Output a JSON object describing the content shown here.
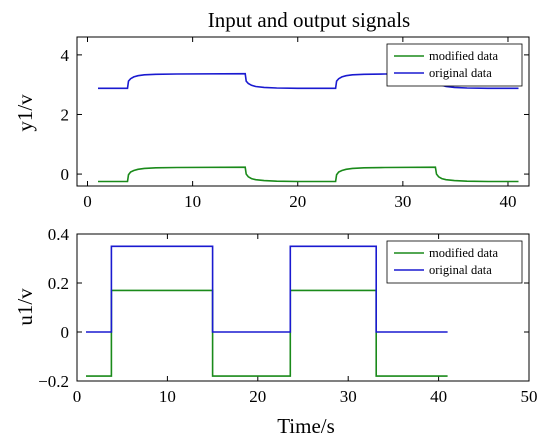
{
  "chart_data": [
    {
      "type": "line",
      "title": "Input and output signals",
      "ylabel": "y1/v",
      "xlim": [
        -1,
        42
      ],
      "ylim": [
        -0.4,
        4.6
      ],
      "xticks": [
        0,
        10,
        20,
        30,
        40
      ],
      "yticks": [
        0,
        2,
        4
      ],
      "legend": "top-right",
      "series": [
        {
          "name": "modified data",
          "color": "#1a8a1a",
          "x": [
            1.0,
            3.8,
            3.9,
            4.1,
            4.4,
            4.8,
            5.4,
            6.5,
            8.5,
            15.0,
            15.1,
            15.3,
            15.6,
            16.0,
            16.8,
            18.0,
            20.0,
            23.6,
            23.7,
            23.9,
            24.2,
            24.6,
            25.2,
            26.3,
            28.3,
            33.1,
            33.2,
            33.4,
            33.7,
            34.1,
            34.9,
            36.1,
            38.1,
            41.0
          ],
          "y": [
            -0.25,
            -0.25,
            -0.02,
            0.07,
            0.12,
            0.16,
            0.19,
            0.21,
            0.22,
            0.23,
            0.0,
            -0.09,
            -0.15,
            -0.19,
            -0.22,
            -0.24,
            -0.25,
            -0.25,
            -0.02,
            0.07,
            0.12,
            0.16,
            0.19,
            0.21,
            0.22,
            0.23,
            0.0,
            -0.09,
            -0.15,
            -0.19,
            -0.22,
            -0.24,
            -0.25,
            -0.25
          ]
        },
        {
          "name": "original data",
          "color": "#1a1ad0",
          "x": [
            1.0,
            3.8,
            3.9,
            4.1,
            4.4,
            4.8,
            5.4,
            6.5,
            8.5,
            15.0,
            15.1,
            15.3,
            15.6,
            16.0,
            16.8,
            18.0,
            20.0,
            23.6,
            23.7,
            23.9,
            24.2,
            24.6,
            25.2,
            26.3,
            28.3,
            33.1,
            33.2,
            33.4,
            33.7,
            34.1,
            34.9,
            36.1,
            38.1,
            41.0
          ],
          "y": [
            2.88,
            2.88,
            3.12,
            3.2,
            3.26,
            3.3,
            3.33,
            3.35,
            3.36,
            3.37,
            3.12,
            3.04,
            2.98,
            2.94,
            2.91,
            2.89,
            2.88,
            2.88,
            3.12,
            3.2,
            3.26,
            3.3,
            3.33,
            3.35,
            3.36,
            3.37,
            3.12,
            3.04,
            2.98,
            2.94,
            2.91,
            2.89,
            2.88,
            2.88
          ]
        }
      ]
    },
    {
      "type": "line",
      "xlabel": "Time/s",
      "ylabel": "u1/v",
      "xlim": [
        0,
        50
      ],
      "ylim": [
        -0.2,
        0.4
      ],
      "xticks": [
        0,
        10,
        20,
        30,
        40,
        50
      ],
      "yticks": [
        -0.2,
        0,
        0.2,
        0.4
      ],
      "ytick_labels": [
        "−0.2",
        "0",
        "0.2",
        "0.4"
      ],
      "legend": "top-right",
      "series": [
        {
          "name": "modified data",
          "color": "#1a8a1a",
          "x": [
            1.0,
            3.8,
            3.8,
            15.0,
            15.0,
            23.6,
            23.6,
            33.1,
            33.1,
            41.0
          ],
          "y": [
            -0.18,
            -0.18,
            0.17,
            0.17,
            -0.18,
            -0.18,
            0.17,
            0.17,
            -0.18,
            -0.18
          ]
        },
        {
          "name": "original data",
          "color": "#1a1ad0",
          "x": [
            1.0,
            3.8,
            3.8,
            15.0,
            15.0,
            23.6,
            23.6,
            33.1,
            33.1,
            41.0
          ],
          "y": [
            0.0,
            0.0,
            0.35,
            0.35,
            0.0,
            0.0,
            0.35,
            0.35,
            0.0,
            0.0
          ]
        }
      ]
    }
  ]
}
